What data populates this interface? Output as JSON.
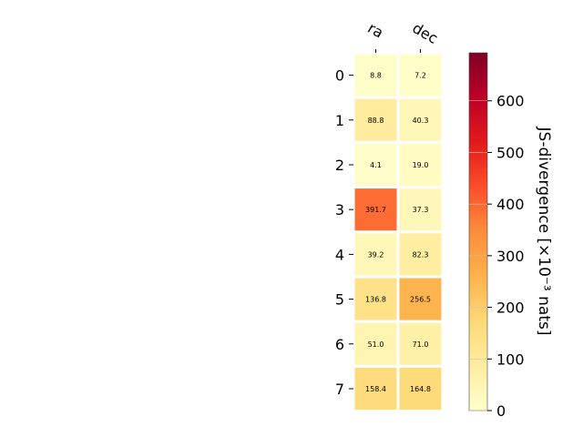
{
  "chart_data": {
    "type": "heatmap",
    "title": "",
    "x_categories": [
      "ra",
      "dec"
    ],
    "y_categories": [
      "0",
      "1",
      "2",
      "3",
      "4",
      "5",
      "6",
      "7"
    ],
    "values": [
      [
        8.8,
        7.2
      ],
      [
        88.8,
        40.3
      ],
      [
        4.1,
        19.0
      ],
      [
        391.7,
        37.3
      ],
      [
        39.2,
        82.3
      ],
      [
        136.8,
        256.5
      ],
      [
        51.0,
        71.0
      ],
      [
        158.4,
        164.8
      ]
    ],
    "value_labels": [
      [
        "8.8",
        "7.2"
      ],
      [
        "88.8",
        "40.3"
      ],
      [
        "4.1",
        "19.0"
      ],
      [
        "391.7",
        "37.3"
      ],
      [
        "39.2",
        "82.3"
      ],
      [
        "136.8",
        "256.5"
      ],
      [
        "51.0",
        "71.0"
      ],
      [
        "158.4",
        "164.8"
      ]
    ],
    "colorbar": {
      "label": "JS-divergence [×10⁻³ nats]",
      "min": 0,
      "max": 693,
      "ticks": [
        0,
        100,
        200,
        300,
        400,
        500,
        600
      ],
      "tick_labels": [
        "0",
        "100",
        "200",
        "300",
        "400",
        "500",
        "600"
      ],
      "colormap": "YlOrRd",
      "position": "right"
    },
    "grid": false
  }
}
